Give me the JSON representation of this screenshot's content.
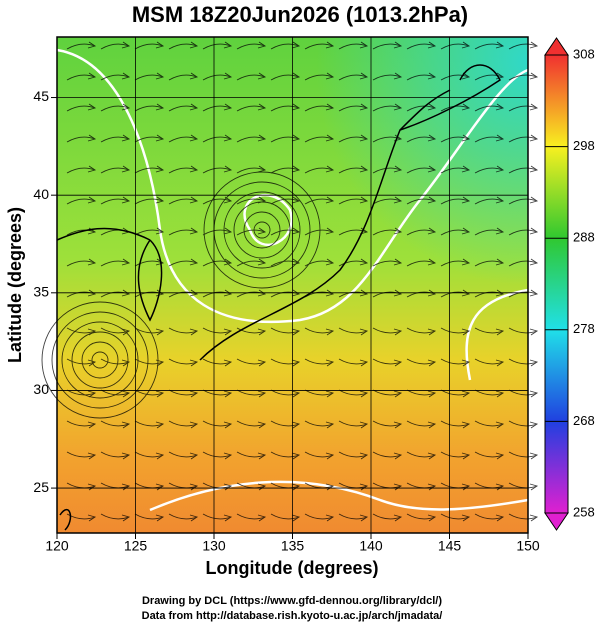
{
  "title": "MSM 18Z20Jun2026 (1013.2hPa)",
  "x_axis": {
    "label": "Longitude (degrees)",
    "lim": [
      120,
      150
    ],
    "ticks": [
      120,
      125,
      130,
      135,
      140,
      145,
      150
    ]
  },
  "y_axis": {
    "label": "Latitude  (degrees)",
    "lim": [
      22.7,
      48.1
    ],
    "ticks": [
      25,
      30,
      35,
      40,
      45
    ]
  },
  "colorbar": {
    "lim": [
      258,
      308
    ],
    "ticks": [
      258,
      268,
      278,
      288,
      298,
      308
    ]
  },
  "credits": [
    "Drawing by DCL (https://www.gfd-dennou.org/library/dcl/)",
    "Data from http://database.rish.kyoto-u.ac.jp/arch/jmadata/"
  ]
}
